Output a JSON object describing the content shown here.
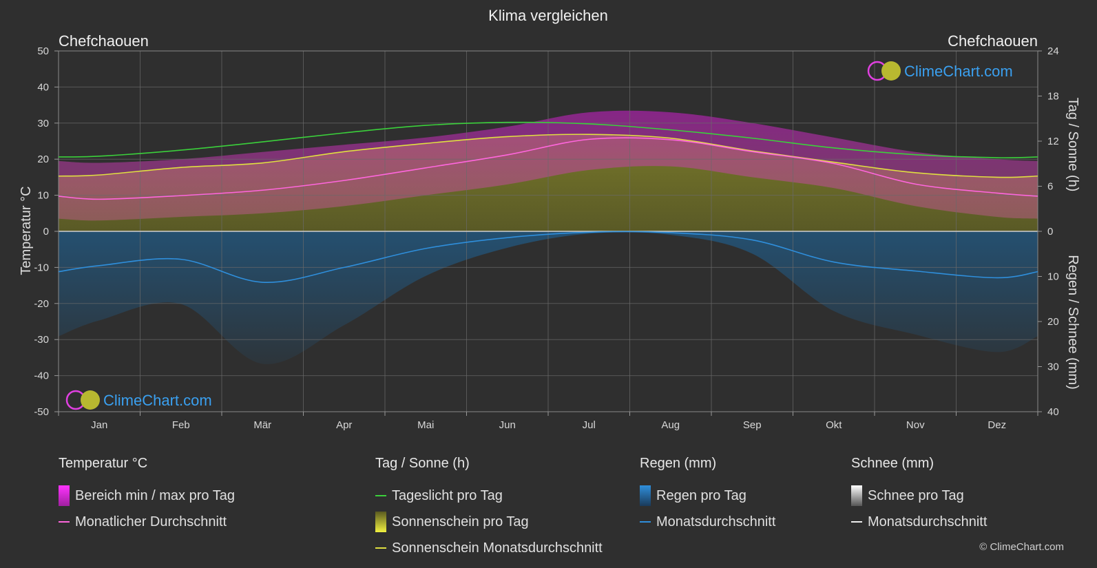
{
  "title": "Klima vergleichen",
  "location_left": "Chefchaouen",
  "location_right": "Chefchaouen",
  "brand": "ClimeChart.com",
  "copyright": "© ClimeChart.com",
  "chart_data": {
    "type": "area",
    "categories": [
      "Jan",
      "Feb",
      "Mär",
      "Apr",
      "Mai",
      "Jun",
      "Jul",
      "Aug",
      "Sep",
      "Okt",
      "Nov",
      "Dez"
    ],
    "y_left": {
      "label": "Temperatur °C",
      "range": [
        -50,
        50
      ],
      "ticks": [
        50,
        40,
        30,
        20,
        10,
        0,
        -10,
        -20,
        -30,
        -40,
        -50
      ]
    },
    "y_right_top": {
      "label": "Tag / Sonne (h)",
      "range": [
        0,
        24
      ],
      "ticks": [
        24,
        18,
        12,
        6,
        0
      ]
    },
    "y_right_bottom": {
      "label": "Regen / Schnee (mm)",
      "range": [
        0,
        40
      ],
      "ticks": [
        10,
        20,
        30,
        40
      ]
    },
    "grid": true,
    "series": [
      {
        "name": "Tageslicht pro Tag",
        "color": "#3bd13b",
        "unit": "h",
        "values": [
          10.0,
          10.8,
          11.9,
          13.1,
          14.1,
          14.5,
          14.3,
          13.5,
          12.4,
          11.1,
          10.2,
          9.8
        ]
      },
      {
        "name": "Sonnenschein Monatsdurchschnitt",
        "color": "#e0e040",
        "unit": "h",
        "values": [
          7.5,
          8.5,
          9.1,
          10.6,
          11.7,
          12.6,
          12.9,
          12.4,
          10.7,
          9.2,
          7.8,
          7.2
        ]
      },
      {
        "name": "Monatlicher Durchschnitt",
        "color": "#ff66dd",
        "unit": "°C",
        "values": [
          8.9,
          9.9,
          11.4,
          14.1,
          17.6,
          21.2,
          25.5,
          25.4,
          22.1,
          18.8,
          13.1,
          10.6
        ]
      },
      {
        "name": "Monatsdurchschnitt",
        "color": "#2f8fdc",
        "unit": "mm",
        "values": [
          7.6,
          6.2,
          11.3,
          8.0,
          3.8,
          1.4,
          0.2,
          0.3,
          1.9,
          6.8,
          8.8,
          10.3
        ]
      }
    ],
    "temp_range_max": [
      19,
      20,
      22,
      24,
      26,
      29,
      33,
      33,
      30,
      26,
      22,
      20
    ],
    "temp_range_min": [
      3,
      4,
      5,
      7,
      10,
      13,
      17,
      18,
      15,
      12,
      7,
      4
    ]
  },
  "legend": {
    "groups": [
      {
        "heading": "Temperatur °C",
        "items": [
          {
            "label": "Bereich min / max pro Tag",
            "swatch": "box",
            "color": "#e62ee6"
          },
          {
            "label": "Monatlicher Durchschnitt",
            "swatch": "line",
            "color": "#ff66dd"
          }
        ]
      },
      {
        "heading": "Tag / Sonne (h)",
        "items": [
          {
            "label": "Tageslicht pro Tag",
            "swatch": "line",
            "color": "#3bd13b"
          },
          {
            "label": "Sonnenschein pro Tag",
            "swatch": "box",
            "color": "#c8c832"
          },
          {
            "label": "Sonnenschein Monatsdurchschnitt",
            "swatch": "line",
            "color": "#e0e040"
          }
        ]
      },
      {
        "heading": "Regen (mm)",
        "items": [
          {
            "label": "Regen pro Tag",
            "swatch": "box",
            "color": "#2f8fdc"
          },
          {
            "label": "Monatsdurchschnitt",
            "swatch": "line",
            "color": "#2f8fdc"
          }
        ]
      },
      {
        "heading": "Schnee (mm)",
        "items": [
          {
            "label": "Schnee pro Tag",
            "swatch": "box",
            "color": "#dddddd"
          },
          {
            "label": "Monatsdurchschnitt",
            "swatch": "line",
            "color": "#eeeeee"
          }
        ]
      }
    ]
  }
}
